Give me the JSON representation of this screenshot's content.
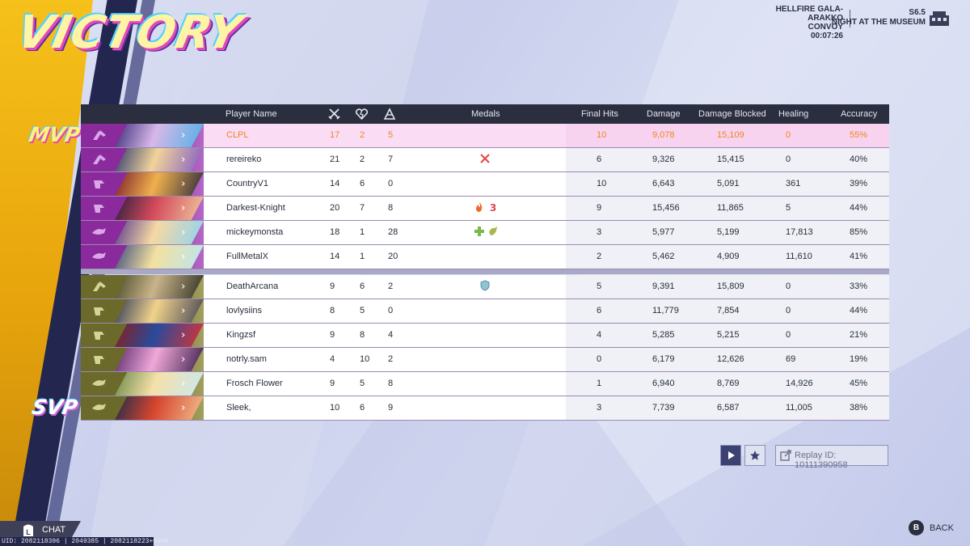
{
  "banner": {
    "title": "VICTORY"
  },
  "match_info": {
    "map": "HELLFIRE GALA-ARAKKO",
    "mode": "CONVOY",
    "time": "00:07:26",
    "season": "S6.5",
    "event": "NIGHT AT THE MUSEUM"
  },
  "table": {
    "headers": {
      "player_name": "Player Name",
      "medals": "Medals",
      "final_hits": "Final Hits",
      "damage": "Damage",
      "damage_blocked": "Damage Blocked",
      "healing": "Healing",
      "accuracy": "Accuracy"
    },
    "header_icons": [
      "kills-icon",
      "deaths-icon",
      "assists-icon"
    ]
  },
  "tags": {
    "mvp": "MVP",
    "svp": "SVP"
  },
  "team1": [
    {
      "name": "CLPL",
      "kills": "17",
      "deaths": "2",
      "assists": "5",
      "final_hits": "10",
      "damage": "9,078",
      "blocked": "15,109",
      "healing": "0",
      "accuracy": "55%",
      "role_icon": "vanguard-icon",
      "medals": []
    },
    {
      "name": "rereireko",
      "kills": "21",
      "deaths": "2",
      "assists": "7",
      "final_hits": "6",
      "damage": "9,326",
      "blocked": "15,415",
      "healing": "0",
      "accuracy": "40%",
      "role_icon": "vanguard-icon",
      "medals": [
        "crossed-swords-medal-icon"
      ]
    },
    {
      "name": "CountryV1",
      "kills": "14",
      "deaths": "6",
      "assists": "0",
      "final_hits": "10",
      "damage": "6,643",
      "blocked": "5,091",
      "healing": "361",
      "accuracy": "39%",
      "role_icon": "duelist-icon",
      "medals": []
    },
    {
      "name": "Darkest-Knight",
      "kills": "20",
      "deaths": "7",
      "assists": "8",
      "final_hits": "9",
      "damage": "15,456",
      "blocked": "11,865",
      "healing": "5",
      "accuracy": "44%",
      "role_icon": "duelist-icon",
      "medals": [
        "flame-medal-icon",
        "streak-3-medal-icon"
      ]
    },
    {
      "name": "mickeymonsta",
      "kills": "18",
      "deaths": "1",
      "assists": "28",
      "final_hits": "3",
      "damage": "5,977",
      "blocked": "5,199",
      "healing": "17,813",
      "accuracy": "85%",
      "role_icon": "strategist-icon",
      "medals": [
        "heal-cross-medal-icon",
        "support-medal-icon"
      ]
    },
    {
      "name": "FullMetalX",
      "kills": "14",
      "deaths": "1",
      "assists": "20",
      "final_hits": "2",
      "damage": "5,462",
      "blocked": "4,909",
      "healing": "11,610",
      "accuracy": "41%",
      "role_icon": "strategist-icon",
      "medals": []
    }
  ],
  "team2": [
    {
      "name": "DeathArcana",
      "kills": "9",
      "deaths": "6",
      "assists": "2",
      "final_hits": "5",
      "damage": "9,391",
      "blocked": "15,809",
      "healing": "0",
      "accuracy": "33%",
      "role_icon": "vanguard-icon",
      "medals": [
        "shield-medal-icon"
      ]
    },
    {
      "name": "lovlysiins",
      "kills": "8",
      "deaths": "5",
      "assists": "0",
      "final_hits": "6",
      "damage": "11,779",
      "blocked": "7,854",
      "healing": "0",
      "accuracy": "44%",
      "role_icon": "duelist-icon",
      "medals": []
    },
    {
      "name": "Kingzsf",
      "kills": "9",
      "deaths": "8",
      "assists": "4",
      "final_hits": "4",
      "damage": "5,285",
      "blocked": "5,215",
      "healing": "0",
      "accuracy": "21%",
      "role_icon": "duelist-icon",
      "medals": []
    },
    {
      "name": "notrly.sam",
      "kills": "4",
      "deaths": "10",
      "assists": "2",
      "final_hits": "0",
      "damage": "6,179",
      "blocked": "12,626",
      "healing": "69",
      "accuracy": "19%",
      "role_icon": "duelist-icon",
      "medals": []
    },
    {
      "name": "Frosch Flower",
      "kills": "9",
      "deaths": "5",
      "assists": "8",
      "final_hits": "1",
      "damage": "6,940",
      "blocked": "8,769",
      "healing": "14,926",
      "accuracy": "45%",
      "role_icon": "strategist-icon",
      "medals": []
    },
    {
      "name": "Sleek,",
      "kills": "10",
      "deaths": "6",
      "assists": "9",
      "final_hits": "3",
      "damage": "7,739",
      "blocked": "6,587",
      "healing": "11,005",
      "accuracy": "38%",
      "role_icon": "strategist-icon",
      "medals": []
    }
  ],
  "colors": {
    "team1_accent": "#8a2a9c",
    "team2_accent": "#6b6a2a",
    "mvp_row": "#fbdcf5",
    "mvp_text": "#f0851d",
    "header_bg": "#2b2e3f"
  },
  "footer": {
    "replay_id": "Replay ID: 10111390958",
    "chat": "CHAT",
    "back": "BACK",
    "back_key": "B",
    "chat_key": "L",
    "uid_line": "UID: 2082118396 | 2049385 | 2082118223+0000"
  }
}
